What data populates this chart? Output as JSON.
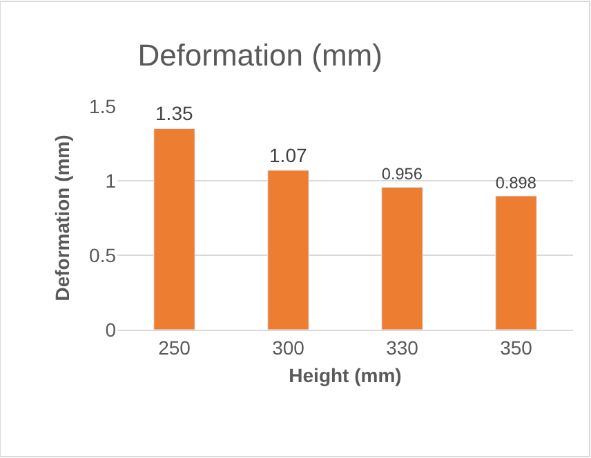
{
  "chart_data": {
    "type": "bar",
    "title": "Deformation (mm)",
    "xlabel": "Height (mm)",
    "ylabel": "Deformation (mm)",
    "categories": [
      "250",
      "300",
      "330",
      "350"
    ],
    "values": [
      1.35,
      1.07,
      0.956,
      0.898
    ],
    "color": "#ed7d31",
    "ylim": [
      0,
      1.5
    ],
    "yticks": [
      0,
      0.5,
      1,
      1.5
    ],
    "grid": "y",
    "data_labels": true,
    "legend": false
  }
}
